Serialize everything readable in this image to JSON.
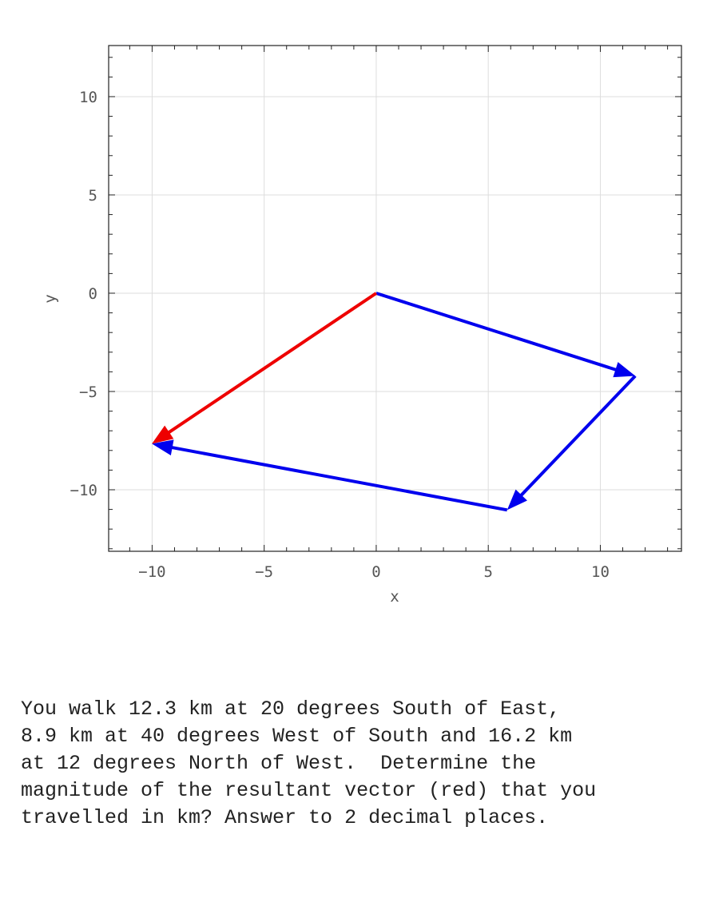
{
  "chart_data": {
    "type": "vector-diagram",
    "xlabel": "x",
    "ylabel": "y",
    "xlim": [
      -11.94,
      13.62
    ],
    "ylim": [
      -13.13,
      12.6
    ],
    "xticks": [
      -10,
      -5,
      0,
      5,
      10
    ],
    "yticks": [
      -10,
      -5,
      0,
      5,
      10
    ],
    "minor_tick_step": 1,
    "grid": true,
    "vectors": [
      {
        "name": "leg-1",
        "from": [
          0,
          0
        ],
        "to": [
          11.56,
          -4.21
        ],
        "color": "#0000ee"
      },
      {
        "name": "leg-2",
        "from": [
          11.56,
          -4.21
        ],
        "to": [
          5.84,
          -11.03
        ],
        "color": "#0000ee"
      },
      {
        "name": "leg-3",
        "from": [
          5.84,
          -11.03
        ],
        "to": [
          -10.01,
          -7.66
        ],
        "color": "#0000ee"
      },
      {
        "name": "resultant",
        "from": [
          0,
          0
        ],
        "to": [
          -10.01,
          -7.66
        ],
        "color": "#ee0000"
      }
    ]
  },
  "question": {
    "text": "You walk 12.3 km at 20 degrees South of East,\n8.9 km at 40 degrees West of South and 16.2 km\nat 12 degrees North of West.  Determine the\nmagnitude of the resultant vector (red) that you\ntravelled in km? Answer to 2 decimal places."
  }
}
